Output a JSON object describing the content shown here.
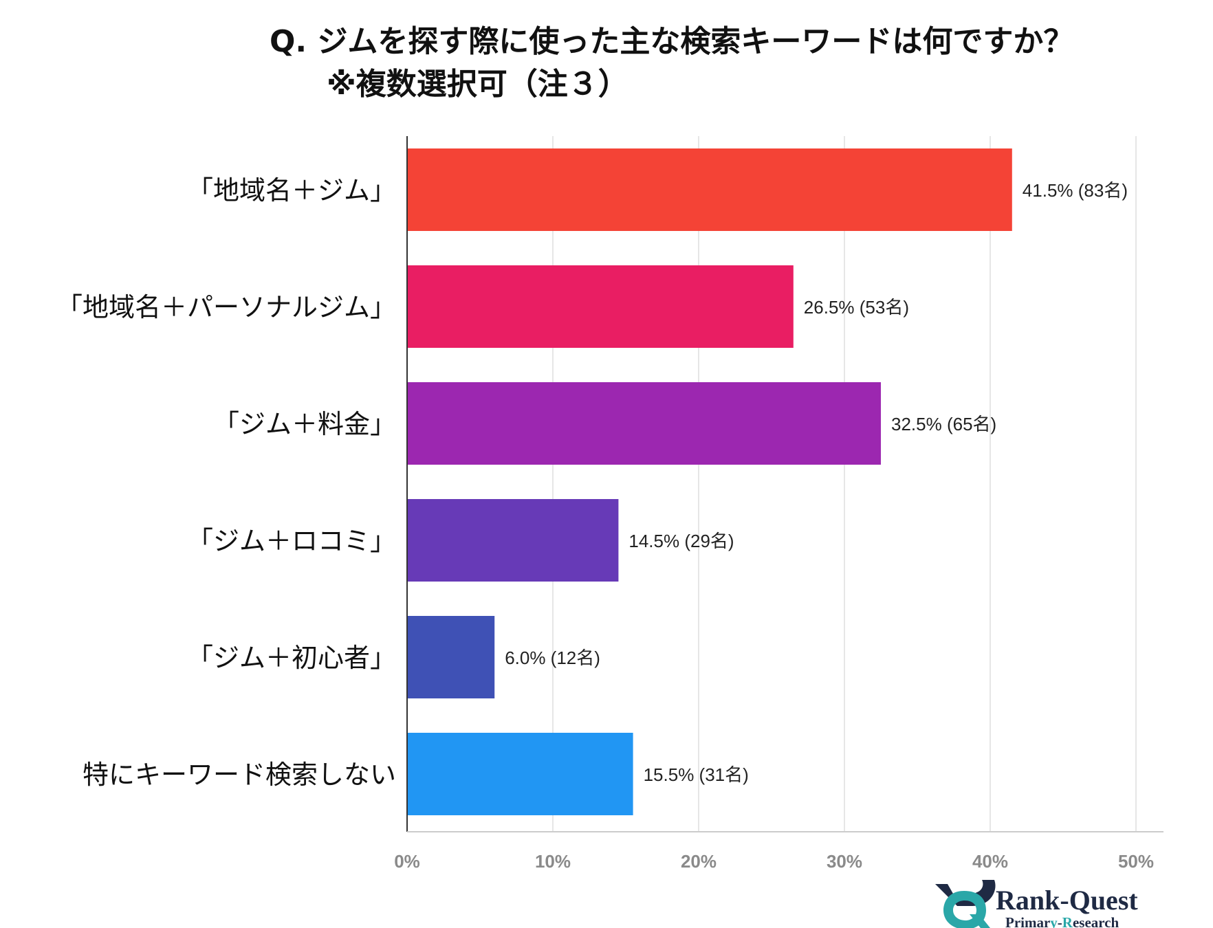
{
  "chart_data": {
    "type": "bar",
    "orientation": "horizontal",
    "title": "Q. ジムを探す際に使った主な検索キーワードは何ですか？",
    "subtitle": "※複数選択可（注３）",
    "categories": [
      "「地域名＋ジム」",
      "「地域名＋パーソナルジム」",
      "「ジム＋料金」",
      "「ジム＋ロコミ」",
      "「ジム＋初心者」",
      "特にキーワード検索しない"
    ],
    "values": [
      41.5,
      26.5,
      32.5,
      14.5,
      6.0,
      15.5
    ],
    "data_labels": [
      "41.5% (83名)",
      "26.5% (53名)",
      "32.5% (65名)",
      "14.5% (29名)",
      "6.0% (12名)",
      "15.5% (31名)"
    ],
    "bar_colors": [
      "#f44336",
      "#e91e63",
      "#9c27b0",
      "#673ab7",
      "#3f51b5",
      "#2196f3"
    ],
    "xlim": [
      0,
      50
    ],
    "x_ticks": [
      0,
      10,
      20,
      30,
      40,
      50
    ],
    "x_tick_labels": [
      "0%",
      "10%",
      "20%",
      "30%",
      "40%",
      "50%"
    ],
    "grid": true,
    "xlabel": "",
    "ylabel": ""
  },
  "logo": {
    "name": "Rank-Quest",
    "sub_prefix": "Primar",
    "sub_accent_1": "y",
    "sub_mid": "-",
    "sub_accent_2": "R",
    "sub_suffix": "esearch",
    "icon": "rq-logo-icon",
    "colors": {
      "navy": "#1f2a44",
      "teal": "#2aa7a8"
    }
  }
}
